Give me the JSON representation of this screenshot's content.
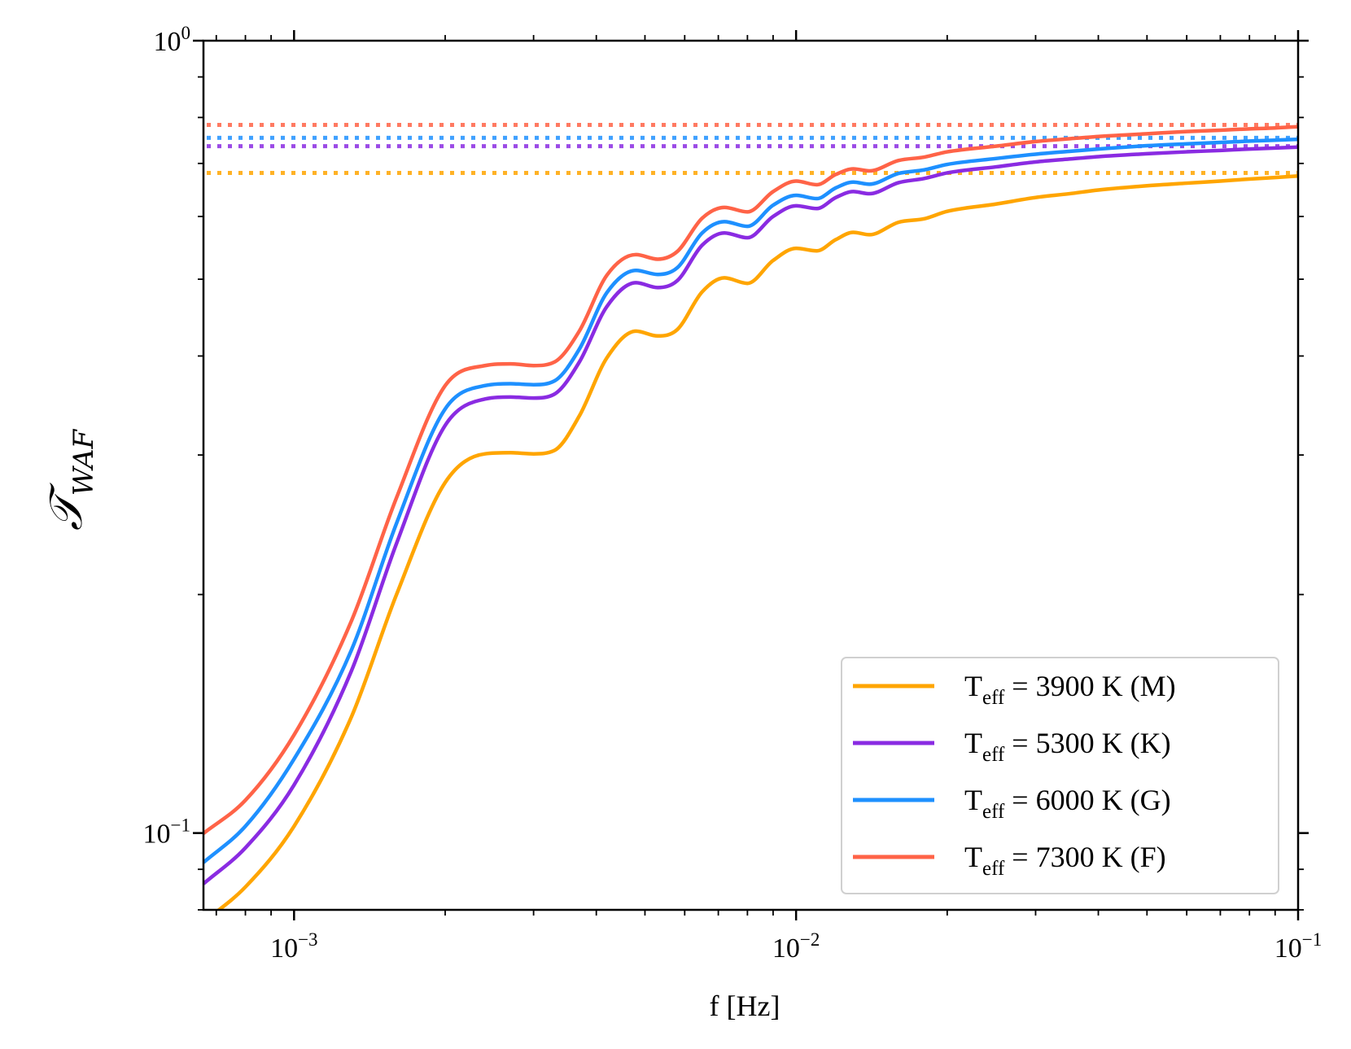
{
  "chart_data": {
    "type": "line",
    "xlabel": "f [Hz]",
    "ylabel": {
      "main": "𝒯",
      "sub": "WAF"
    },
    "xscale": "log",
    "yscale": "log",
    "xlim": [
      0.00066,
      0.1
    ],
    "ylim": [
      0.08,
      1.0
    ],
    "x_ticks": [
      {
        "base": "10",
        "exp": "−3",
        "value": 0.001
      },
      {
        "base": "10",
        "exp": "−2",
        "value": 0.01
      },
      {
        "base": "10",
        "exp": "−1",
        "value": 0.1
      }
    ],
    "y_ticks": [
      {
        "base": "10",
        "exp": "0",
        "value": 1.0
      },
      {
        "base": "10",
        "exp": "−1",
        "value": 0.1
      }
    ],
    "grid": false,
    "legend_position": "lower-right",
    "series": [
      {
        "name": {
          "prefix": "T",
          "sub": "eff",
          "suffix": " = 3900 K (M)"
        },
        "color": "#FFA500",
        "asymptote": 0.681,
        "x": [
          0.00066,
          0.0008,
          0.001,
          0.0013,
          0.0016,
          0.002,
          0.0024,
          0.0027,
          0.003,
          0.0033,
          0.0037,
          0.0042,
          0.0048,
          0.0053,
          0.0058,
          0.0065,
          0.0072,
          0.008,
          0.009,
          0.01,
          0.011,
          0.012,
          0.013,
          0.014,
          0.016,
          0.018,
          0.02,
          0.025,
          0.03,
          0.035,
          0.04,
          0.05,
          0.06,
          0.07,
          0.08,
          0.09,
          0.1
        ],
        "y": [
          0.0772,
          0.0855,
          0.102,
          0.14,
          0.2,
          0.277,
          0.301,
          0.302,
          0.301,
          0.304,
          0.336,
          0.398,
          0.43,
          0.424,
          0.432,
          0.482,
          0.502,
          0.494,
          0.528,
          0.547,
          0.543,
          0.561,
          0.573,
          0.569,
          0.59,
          0.596,
          0.609,
          0.622,
          0.634,
          0.641,
          0.648,
          0.656,
          0.661,
          0.665,
          0.669,
          0.672,
          0.675
        ]
      },
      {
        "name": {
          "prefix": "T",
          "sub": "eff",
          "suffix": " = 5300 K (K)"
        },
        "color": "#8A2BE2",
        "asymptote": 0.736,
        "x": [
          0.00066,
          0.0008,
          0.001,
          0.0013,
          0.0016,
          0.002,
          0.0024,
          0.0027,
          0.003,
          0.0033,
          0.0037,
          0.0042,
          0.0048,
          0.0053,
          0.0058,
          0.0065,
          0.0072,
          0.008,
          0.009,
          0.01,
          0.011,
          0.012,
          0.013,
          0.014,
          0.016,
          0.018,
          0.02,
          0.025,
          0.03,
          0.035,
          0.04,
          0.05,
          0.06,
          0.07,
          0.08,
          0.09,
          0.1
        ],
        "y": [
          0.0863,
          0.0958,
          0.115,
          0.16,
          0.232,
          0.327,
          0.353,
          0.355,
          0.354,
          0.358,
          0.393,
          0.462,
          0.495,
          0.488,
          0.498,
          0.552,
          0.572,
          0.564,
          0.6,
          0.619,
          0.614,
          0.634,
          0.645,
          0.641,
          0.662,
          0.67,
          0.681,
          0.693,
          0.703,
          0.709,
          0.714,
          0.72,
          0.724,
          0.727,
          0.73,
          0.732,
          0.734
        ]
      },
      {
        "name": {
          "prefix": "T",
          "sub": "eff",
          "suffix": " = 6000 K (G)"
        },
        "color": "#1E90FF",
        "asymptote": 0.754,
        "x": [
          0.00066,
          0.0008,
          0.001,
          0.0013,
          0.0016,
          0.002,
          0.0024,
          0.0027,
          0.003,
          0.0033,
          0.0037,
          0.0042,
          0.0048,
          0.0053,
          0.0058,
          0.0065,
          0.0072,
          0.008,
          0.009,
          0.01,
          0.011,
          0.012,
          0.013,
          0.014,
          0.016,
          0.018,
          0.02,
          0.025,
          0.03,
          0.035,
          0.04,
          0.05,
          0.06,
          0.07,
          0.08,
          0.09,
          0.1
        ],
        "y": [
          0.0918,
          0.102,
          0.124,
          0.17,
          0.246,
          0.343,
          0.367,
          0.369,
          0.368,
          0.372,
          0.408,
          0.481,
          0.513,
          0.507,
          0.517,
          0.572,
          0.591,
          0.583,
          0.62,
          0.638,
          0.632,
          0.652,
          0.663,
          0.659,
          0.68,
          0.687,
          0.698,
          0.71,
          0.719,
          0.725,
          0.73,
          0.737,
          0.741,
          0.744,
          0.747,
          0.749,
          0.751
        ]
      },
      {
        "name": {
          "prefix": "T",
          "sub": "eff",
          "suffix": " = 7300 K (F)"
        },
        "color": "#FF6347",
        "asymptote": 0.783,
        "x": [
          0.00066,
          0.0008,
          0.001,
          0.0013,
          0.0016,
          0.002,
          0.0024,
          0.0027,
          0.003,
          0.0033,
          0.0037,
          0.0042,
          0.0048,
          0.0053,
          0.0058,
          0.0065,
          0.0072,
          0.008,
          0.009,
          0.01,
          0.011,
          0.012,
          0.013,
          0.014,
          0.016,
          0.018,
          0.02,
          0.025,
          0.03,
          0.035,
          0.04,
          0.05,
          0.06,
          0.07,
          0.08,
          0.09,
          0.1
        ],
        "y": [
          0.0999,
          0.11,
          0.133,
          0.185,
          0.265,
          0.367,
          0.389,
          0.391,
          0.389,
          0.393,
          0.43,
          0.506,
          0.537,
          0.53,
          0.542,
          0.597,
          0.616,
          0.608,
          0.645,
          0.665,
          0.658,
          0.678,
          0.689,
          0.685,
          0.706,
          0.713,
          0.724,
          0.736,
          0.746,
          0.752,
          0.757,
          0.763,
          0.768,
          0.771,
          0.774,
          0.776,
          0.779
        ]
      }
    ]
  }
}
